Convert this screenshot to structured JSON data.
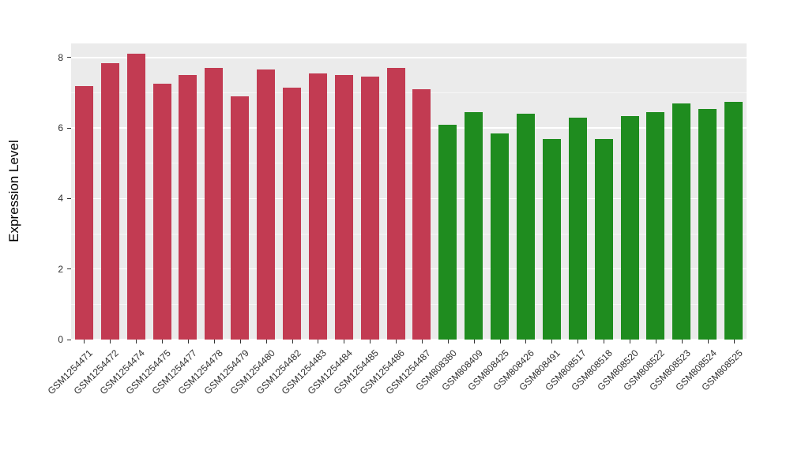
{
  "chart_data": {
    "type": "bar",
    "title": "",
    "xlabel": "",
    "ylabel": "Expression Level",
    "ylim": [
      0,
      8.4
    ],
    "yticks": [
      0,
      2,
      4,
      6,
      8
    ],
    "yticks_minor": [
      1,
      3,
      5,
      7
    ],
    "grid": "on",
    "legend_position": "none",
    "plot_background": "#EBEBEB",
    "colors": {
      "red": "#C23B52",
      "green": "#1F8C1F"
    },
    "bars": [
      {
        "label": "GSM1254471",
        "value": 7.2,
        "group": "red"
      },
      {
        "label": "GSM1254472",
        "value": 7.85,
        "group": "red"
      },
      {
        "label": "GSM1254474",
        "value": 8.1,
        "group": "red"
      },
      {
        "label": "GSM1254475",
        "value": 7.25,
        "group": "red"
      },
      {
        "label": "GSM1254477",
        "value": 7.5,
        "group": "red"
      },
      {
        "label": "GSM1254478",
        "value": 7.7,
        "group": "red"
      },
      {
        "label": "GSM1254479",
        "value": 6.9,
        "group": "red"
      },
      {
        "label": "GSM1254480",
        "value": 7.65,
        "group": "red"
      },
      {
        "label": "GSM1254482",
        "value": 7.15,
        "group": "red"
      },
      {
        "label": "GSM1254483",
        "value": 7.55,
        "group": "red"
      },
      {
        "label": "GSM1254484",
        "value": 7.5,
        "group": "red"
      },
      {
        "label": "GSM1254485",
        "value": 7.45,
        "group": "red"
      },
      {
        "label": "GSM1254486",
        "value": 7.7,
        "group": "red"
      },
      {
        "label": "GSM1254487",
        "value": 7.1,
        "group": "red"
      },
      {
        "label": "GSM808380",
        "value": 6.1,
        "group": "green"
      },
      {
        "label": "GSM808409",
        "value": 6.45,
        "group": "green"
      },
      {
        "label": "GSM808425",
        "value": 5.85,
        "group": "green"
      },
      {
        "label": "GSM808426",
        "value": 6.4,
        "group": "green"
      },
      {
        "label": "GSM808491",
        "value": 5.7,
        "group": "green"
      },
      {
        "label": "GSM808517",
        "value": 6.3,
        "group": "green"
      },
      {
        "label": "GSM808518",
        "value": 5.7,
        "group": "green"
      },
      {
        "label": "GSM808520",
        "value": 6.35,
        "group": "green"
      },
      {
        "label": "GSM808522",
        "value": 6.45,
        "group": "green"
      },
      {
        "label": "GSM808523",
        "value": 6.7,
        "group": "green"
      },
      {
        "label": "GSM808524",
        "value": 6.55,
        "group": "green"
      },
      {
        "label": "GSM808525",
        "value": 6.75,
        "group": "green"
      }
    ]
  }
}
